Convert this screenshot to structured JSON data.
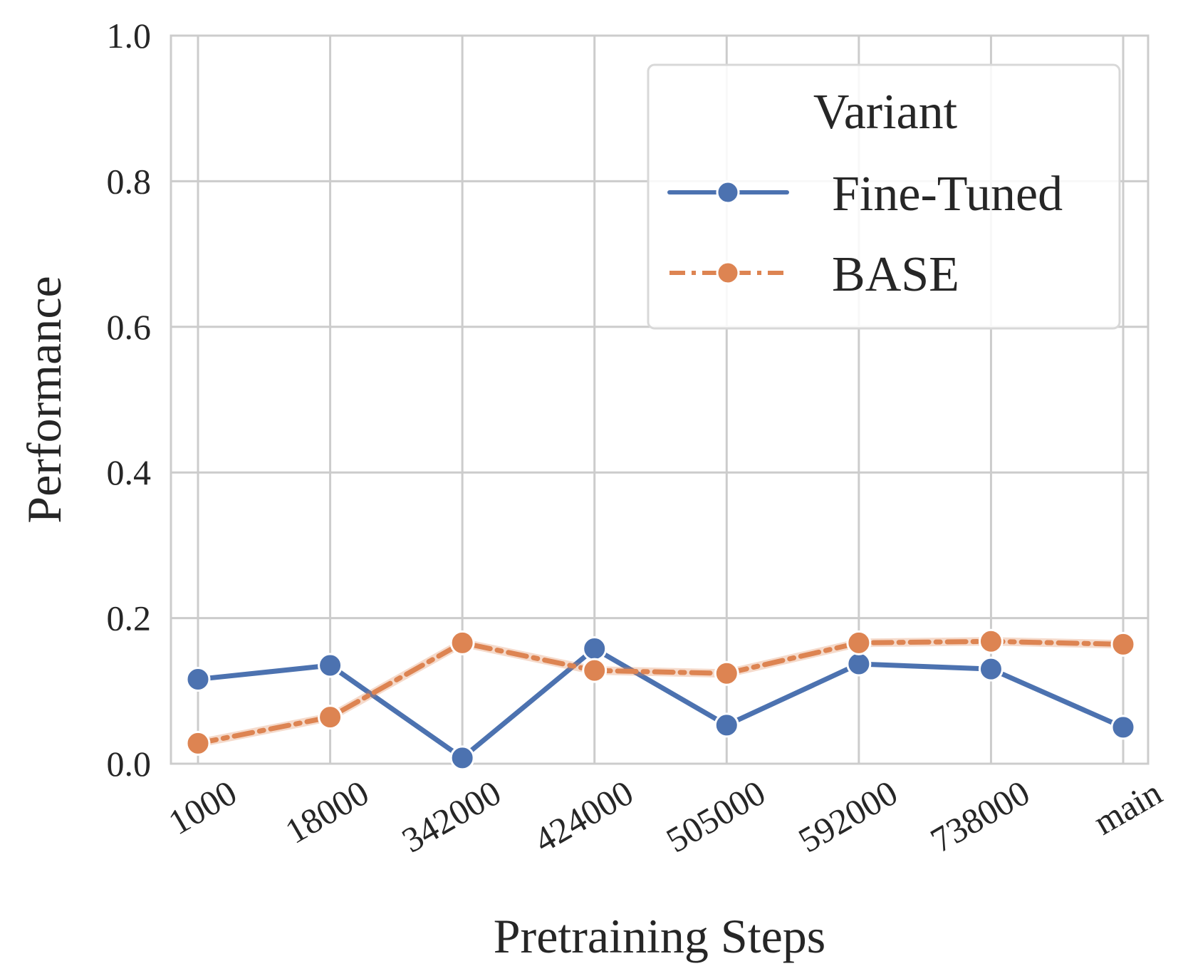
{
  "chart_data": {
    "type": "line",
    "title": "",
    "xlabel": "Pretraining Steps",
    "ylabel": "Performance",
    "categories": [
      "1000",
      "18000",
      "342000",
      "424000",
      "505000",
      "592000",
      "738000",
      "main"
    ],
    "ylim": [
      0.0,
      1.0
    ],
    "yticks": [
      "0.0",
      "0.2",
      "0.4",
      "0.6",
      "0.8",
      "1.0"
    ],
    "grid": true,
    "legend": {
      "title": "Variant",
      "placement": "top-right"
    },
    "series": [
      {
        "name": "Fine-Tuned",
        "color": "#4c72b0",
        "style": "solid",
        "values": [
          0.116,
          0.135,
          0.008,
          0.158,
          0.053,
          0.137,
          0.13,
          0.05
        ]
      },
      {
        "name": "BASE",
        "color": "#dd8452",
        "style": "dashed",
        "values": [
          0.028,
          0.064,
          0.166,
          0.128,
          0.124,
          0.166,
          0.168,
          0.164
        ]
      }
    ]
  }
}
